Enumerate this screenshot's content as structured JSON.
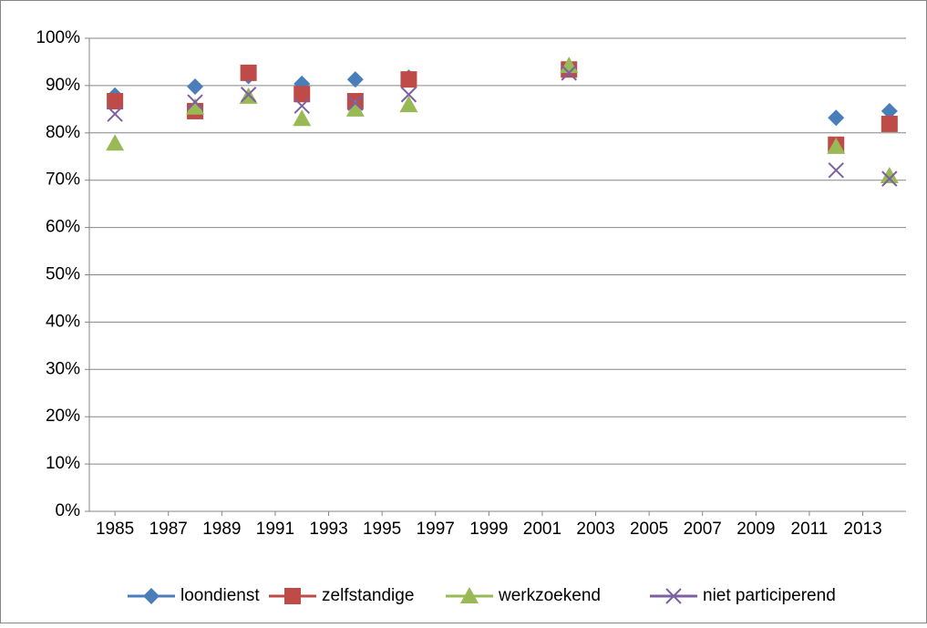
{
  "chart_data": {
    "type": "scatter",
    "x": [
      1985,
      1988,
      1990,
      1992,
      1994,
      1996,
      2002,
      2012,
      2014
    ],
    "series": [
      {
        "name": "loondienst",
        "color": "#4a7ebb",
        "marker": "diamond",
        "values": [
          87.9,
          89.8,
          92,
          90.4,
          91.3,
          91.7,
          93.8,
          83.2,
          84.6
        ]
      },
      {
        "name": "zelfstandige",
        "color": "#be4b48",
        "marker": "square",
        "values": [
          86.7,
          84.6,
          92.7,
          88.2,
          86.7,
          91.3,
          93.4,
          77.5,
          81.9
        ]
      },
      {
        "name": "werkzoekend",
        "color": "#98b954",
        "marker": "triangle",
        "values": [
          77.8,
          85.4,
          87.7,
          83.0,
          85.0,
          85.9,
          94.2,
          77.1,
          70.9
        ]
      },
      {
        "name": "niet participerend",
        "color": "#7d60a0",
        "marker": "x",
        "values": [
          84.0,
          86.5,
          88.1,
          85.7,
          86.3,
          88.1,
          92.7,
          72.1,
          70.3
        ]
      }
    ],
    "xlim": [
      1984.04,
      2014.62
    ],
    "xticks": [
      1985,
      1987,
      1989,
      1991,
      1993,
      1995,
      1997,
      1999,
      2001,
      2003,
      2005,
      2007,
      2009,
      2011,
      2013
    ],
    "ylim": [
      0,
      100
    ],
    "yticks": [
      {
        "value": 0,
        "label": "0%"
      },
      {
        "value": 10,
        "label": "10%"
      },
      {
        "value": 20,
        "label": "20%"
      },
      {
        "value": 30,
        "label": "30%"
      },
      {
        "value": 40,
        "label": "40%"
      },
      {
        "value": 50,
        "label": "50%"
      },
      {
        "value": 60,
        "label": "60%"
      },
      {
        "value": 70,
        "label": "70%"
      },
      {
        "value": 80,
        "label": "80%"
      },
      {
        "value": 90,
        "label": "90%"
      },
      {
        "value": 100,
        "label": "100%"
      }
    ],
    "grid": true,
    "legend": "bottom"
  }
}
